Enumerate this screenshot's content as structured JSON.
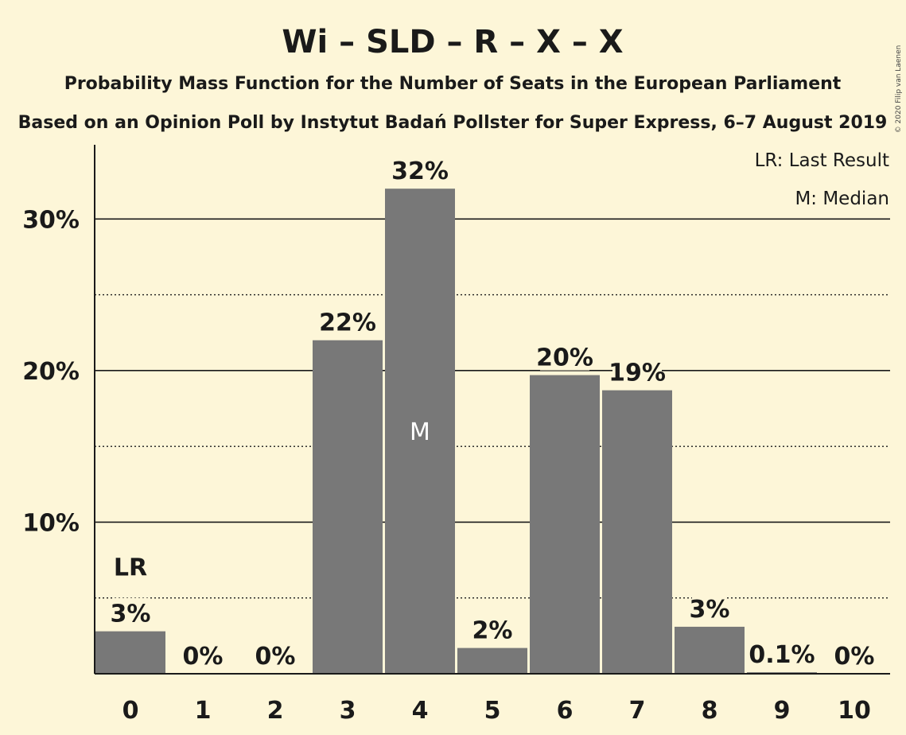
{
  "chart_data": {
    "type": "bar",
    "title": "Wi – SLD – R – X – X",
    "subtitle": "Probability Mass Function for the Number of Seats in the European Parliament",
    "subtitle2": "Based on an Opinion Poll by Instytut Badań Pollster for Super Express, 6–7 August 2019",
    "copyright": "© 2020 Filip van Laenen",
    "xlabel": "",
    "ylabel": "",
    "categories": [
      "0",
      "1",
      "2",
      "3",
      "4",
      "5",
      "6",
      "7",
      "8",
      "9",
      "10"
    ],
    "values": [
      2.8,
      0,
      0,
      22.0,
      32.0,
      1.7,
      19.7,
      18.7,
      3.1,
      0.1,
      0
    ],
    "data_labels": [
      "3%",
      "0%",
      "0%",
      "22%",
      "32%",
      "2%",
      "20%",
      "19%",
      "3%",
      "0.1%",
      "0%"
    ],
    "ylim": [
      0,
      35
    ],
    "yticks": [
      {
        "value": 10,
        "label": "10%"
      },
      {
        "value": 20,
        "label": "20%"
      },
      {
        "value": 30,
        "label": "30%"
      }
    ],
    "minor_gridlines": [
      5,
      15,
      25
    ],
    "grid": true,
    "legend": {
      "placement": "top-right",
      "entries": [
        "LR: Last Result",
        "M: Median"
      ]
    },
    "markers": [
      {
        "category": "0",
        "text": "LR",
        "position": "above-label"
      },
      {
        "category": "4",
        "text": "M",
        "position": "inside-bar"
      }
    ],
    "colors": {
      "bar": "#787878",
      "background": "#fdf6d8",
      "text": "#1a1a1a",
      "median_text": "#ffffff"
    }
  }
}
